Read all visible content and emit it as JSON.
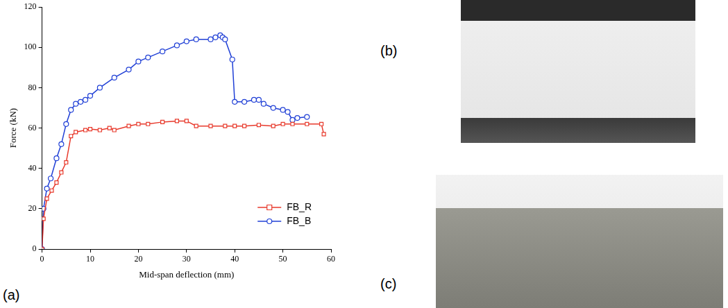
{
  "chart_data": {
    "type": "line",
    "x_label": "Mid-span deflection (mm)",
    "y_label": "Force (kN)",
    "xlim": [
      0,
      60
    ],
    "xticks": [
      0,
      10,
      20,
      30,
      40,
      50,
      60
    ],
    "ylim": [
      0,
      120
    ],
    "yticks": [
      0,
      20,
      40,
      60,
      80,
      100,
      120
    ],
    "grid": false,
    "legend": "lower right",
    "series": [
      {
        "name": "FB_R",
        "color": "#e8392b",
        "marker": "square",
        "line_style": "solid",
        "x": [
          0,
          0.3,
          1,
          2,
          3,
          4,
          5,
          6,
          7,
          9,
          10,
          12,
          14,
          15,
          18,
          20,
          22,
          25,
          28,
          30,
          32,
          35,
          38,
          40,
          42,
          45,
          48,
          50,
          52,
          55,
          58,
          58.5
        ],
        "values": [
          0,
          15,
          25,
          29,
          33,
          38,
          43,
          56,
          58,
          59,
          59.5,
          59,
          60,
          59,
          61,
          62,
          62,
          63,
          63.5,
          63.5,
          61,
          61,
          61,
          61,
          61,
          61.5,
          61,
          62,
          62,
          62,
          62,
          57
        ]
      },
      {
        "name": "FB_B",
        "color": "#1f3fd6",
        "marker": "circle",
        "line_style": "solid",
        "x": [
          0,
          0.3,
          1,
          1.8,
          3,
          4,
          5,
          6,
          7,
          8,
          9,
          10,
          12,
          15,
          18,
          20,
          22,
          25,
          28,
          30,
          32,
          35,
          36,
          37,
          37.5,
          38,
          39.5,
          40,
          42,
          44,
          45,
          46,
          48,
          50,
          51,
          52,
          53,
          55
        ],
        "values": [
          0,
          20,
          30,
          35,
          45,
          52,
          62,
          69,
          72,
          73,
          74,
          76,
          80,
          85,
          89,
          93,
          95,
          98,
          101,
          103,
          104,
          104,
          105,
          106,
          105,
          104,
          94,
          73,
          73,
          74,
          74,
          72,
          70,
          69,
          68,
          64,
          65,
          65.5
        ]
      }
    ]
  },
  "panel_labels": [
    "(a)",
    "(b)",
    "(c)"
  ]
}
